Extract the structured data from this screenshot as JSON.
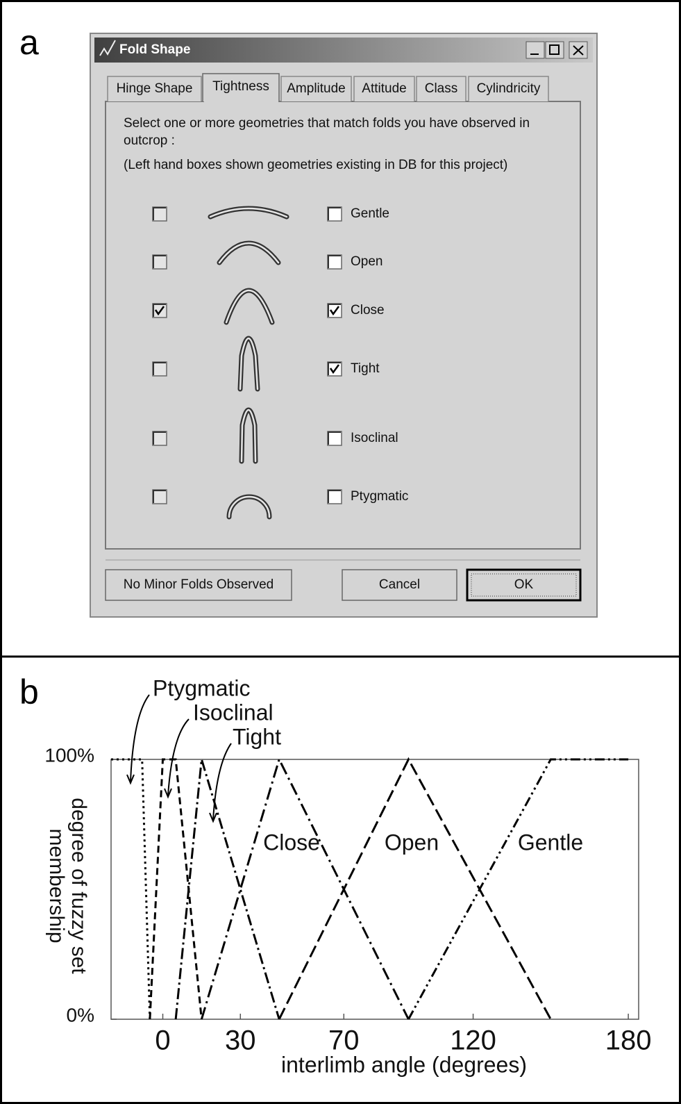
{
  "panel_a": {
    "label": "a",
    "window": {
      "title": "Fold Shape",
      "tabs": [
        "Hinge Shape",
        "Tightness",
        "Amplitude",
        "Attitude",
        "Class",
        "Cylindricity"
      ],
      "instructions": [
        "Select one or more geometries that match folds you have observed in outcrop :",
        "(Left hand boxes shown geometries existing in DB for this project)"
      ],
      "rows": [
        {
          "label": "Gentle",
          "in_db": false,
          "selected": false
        },
        {
          "label": "Open",
          "in_db": false,
          "selected": false
        },
        {
          "label": "Close",
          "in_db": true,
          "selected": true
        },
        {
          "label": "Tight",
          "in_db": false,
          "selected": true
        },
        {
          "label": "Isoclinal",
          "in_db": false,
          "selected": false
        },
        {
          "label": "Ptygmatic",
          "in_db": false,
          "selected": false
        }
      ],
      "buttons": [
        "No Minor Folds Observed",
        "Cancel",
        "OK"
      ]
    }
  },
  "chart_data": {
    "type": "line",
    "panel_label": "b",
    "xlabel": "interlimb angle (degrees)",
    "ylabel": [
      "degree of fuzzy set",
      "membership"
    ],
    "xlim": [
      -20,
      184
    ],
    "xticks": [
      0,
      30,
      70,
      120,
      180
    ],
    "ylim": [
      0,
      100
    ],
    "yticks": [
      {
        "value": 0,
        "label": "0%"
      },
      {
        "value": 100,
        "label": "100%"
      }
    ],
    "series": [
      {
        "name": "Ptygmatic",
        "color": "#000000",
        "dash": "3,5",
        "x": [
          -20,
          -8,
          -5
        ],
        "values": [
          100,
          100,
          0
        ]
      },
      {
        "name": "Isoclinal",
        "color": "#000000",
        "dash": "10,6",
        "x": [
          -5,
          0,
          5,
          15
        ],
        "values": [
          0,
          100,
          100,
          0
        ]
      },
      {
        "name": "Tight",
        "color": "#000000",
        "dash": "16,5,3,5",
        "x": [
          5,
          15,
          45
        ],
        "values": [
          0,
          100,
          0
        ]
      },
      {
        "name": "Close",
        "color": "#000000",
        "dash": "18,6,3,6",
        "x": [
          15,
          45,
          95
        ],
        "values": [
          0,
          100,
          0
        ]
      },
      {
        "name": "Open",
        "color": "#000000",
        "dash": "18,7",
        "x": [
          45,
          95,
          150
        ],
        "values": [
          0,
          100,
          0
        ]
      },
      {
        "name": "Gentle",
        "color": "#000000",
        "dash": "14,5,3,5,3,5",
        "x": [
          95,
          150,
          180
        ],
        "values": [
          0,
          100,
          100
        ]
      }
    ]
  }
}
